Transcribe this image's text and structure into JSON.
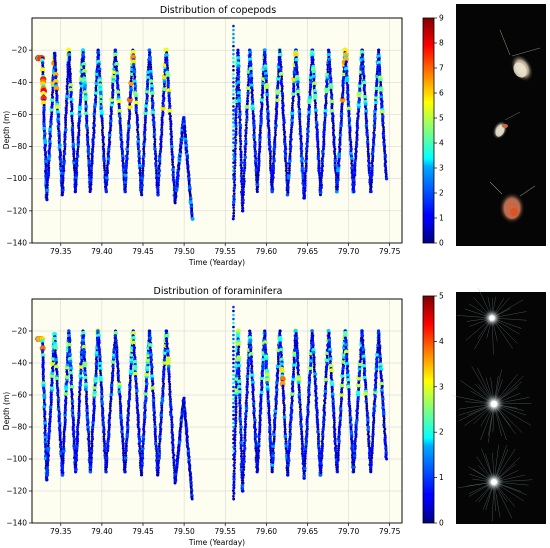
{
  "colors": {
    "plot_background": "#fefef0",
    "colormap": "jet",
    "thumbnail_background": "#050505"
  },
  "chart_data": [
    {
      "type": "scatter",
      "title": "Distribution of copepods",
      "xlabel": "Time (Yearday)",
      "ylabel": "Depth (m)",
      "xlim": [
        79.315,
        79.765
      ],
      "ylim": [
        -140,
        0
      ],
      "xticks": [
        79.35,
        79.4,
        79.45,
        79.5,
        79.55,
        79.6,
        79.65,
        79.7,
        79.75
      ],
      "xtick_labels": [
        "79.35",
        "79.40",
        "79.45",
        "79.50",
        "79.55",
        "79.60",
        "79.65",
        "79.70",
        "79.75"
      ],
      "yticks": [
        -140,
        -120,
        -100,
        -80,
        -60,
        -40,
        -20
      ],
      "ytick_labels": [
        "−140",
        "−120",
        "−100",
        "−80",
        "−60",
        "−40",
        "−20"
      ],
      "grid": true,
      "colorbar": {
        "colormap": "jet",
        "range": [
          0,
          9
        ],
        "ticks": [
          0,
          1,
          2,
          3,
          4,
          5,
          6,
          7,
          8,
          9
        ],
        "tick_labels": [
          "0",
          "1",
          "2",
          "3",
          "4",
          "5",
          "6",
          "7",
          "8",
          "9"
        ]
      },
      "profiles": [
        {
          "x0": 79.322,
          "x1": 79.333,
          "top": -25,
          "bottom": -113,
          "vmax": 8
        },
        {
          "x0": 79.333,
          "x1": 79.352,
          "top": -22,
          "bottom": -110,
          "vmax": 7
        },
        {
          "x0": 79.352,
          "x1": 79.368,
          "top": -20,
          "bottom": -108,
          "vmax": 6
        },
        {
          "x0": 79.368,
          "x1": 79.386,
          "top": -20,
          "bottom": -108,
          "vmax": 5
        },
        {
          "x0": 79.386,
          "x1": 79.405,
          "top": -20,
          "bottom": -108,
          "vmax": 5
        },
        {
          "x0": 79.405,
          "x1": 79.428,
          "top": -20,
          "bottom": -108,
          "vmax": 6
        },
        {
          "x0": 79.428,
          "x1": 79.448,
          "top": -20,
          "bottom": -110,
          "vmax": 7
        },
        {
          "x0": 79.448,
          "x1": 79.468,
          "top": -20,
          "bottom": -110,
          "vmax": 5
        },
        {
          "x0": 79.468,
          "x1": 79.489,
          "top": -20,
          "bottom": -115,
          "vmax": 6
        },
        {
          "x0": 79.489,
          "x1": 79.51,
          "top": -62,
          "bottom": -125,
          "vmax": 7
        },
        {
          "x0": 79.56,
          "x1": 79.571,
          "top": -20,
          "bottom": -120,
          "vmax": 5
        },
        {
          "x0": 79.571,
          "x1": 79.589,
          "top": -20,
          "bottom": -108,
          "vmax": 5
        },
        {
          "x0": 79.589,
          "x1": 79.607,
          "top": -20,
          "bottom": -108,
          "vmax": 5
        },
        {
          "x0": 79.607,
          "x1": 79.626,
          "top": -20,
          "bottom": -110,
          "vmax": 5
        },
        {
          "x0": 79.626,
          "x1": 79.646,
          "top": -20,
          "bottom": -112,
          "vmax": 6
        },
        {
          "x0": 79.646,
          "x1": 79.666,
          "top": -20,
          "bottom": -110,
          "vmax": 5
        },
        {
          "x0": 79.666,
          "x1": 79.686,
          "top": -20,
          "bottom": -108,
          "vmax": 5
        },
        {
          "x0": 79.686,
          "x1": 79.706,
          "top": -20,
          "bottom": -108,
          "vmax": 7
        },
        {
          "x0": 79.706,
          "x1": 79.727,
          "top": -20,
          "bottom": -108,
          "vmax": 5
        },
        {
          "x0": 79.727,
          "x1": 79.746,
          "top": -20,
          "bottom": -100,
          "vmax": 5
        }
      ],
      "verticals": [
        {
          "x": 79.56,
          "top": -5,
          "bottom": -100
        }
      ]
    },
    {
      "type": "scatter",
      "title": "Distribution of foraminifera",
      "xlabel": "Time (Yearday)",
      "ylabel": "Depth (m)",
      "xlim": [
        79.315,
        79.765
      ],
      "ylim": [
        -140,
        0
      ],
      "xticks": [
        79.35,
        79.4,
        79.45,
        79.5,
        79.55,
        79.6,
        79.65,
        79.7,
        79.75
      ],
      "xtick_labels": [
        "79.35",
        "79.40",
        "79.45",
        "79.50",
        "79.55",
        "79.60",
        "79.65",
        "79.70",
        "79.75"
      ],
      "yticks": [
        -140,
        -120,
        -100,
        -80,
        -60,
        -40,
        -20
      ],
      "ytick_labels": [
        "−140",
        "−120",
        "−100",
        "−80",
        "−60",
        "−40",
        "−20"
      ],
      "grid": true,
      "colorbar": {
        "colormap": "jet",
        "range": [
          0,
          5
        ],
        "ticks": [
          0,
          1,
          2,
          3,
          4,
          5
        ],
        "tick_labels": [
          "0",
          "1",
          "2",
          "3",
          "4",
          "5"
        ]
      },
      "profiles": [
        {
          "x0": 79.322,
          "x1": 79.333,
          "top": -25,
          "bottom": -113,
          "vmax": 4
        },
        {
          "x0": 79.333,
          "x1": 79.352,
          "top": -22,
          "bottom": -110,
          "vmax": 3
        },
        {
          "x0": 79.352,
          "x1": 79.368,
          "top": -20,
          "bottom": -108,
          "vmax": 3
        },
        {
          "x0": 79.368,
          "x1": 79.386,
          "top": -20,
          "bottom": -108,
          "vmax": 3
        },
        {
          "x0": 79.386,
          "x1": 79.405,
          "top": -20,
          "bottom": -108,
          "vmax": 3
        },
        {
          "x0": 79.405,
          "x1": 79.428,
          "top": -20,
          "bottom": -108,
          "vmax": 3
        },
        {
          "x0": 79.428,
          "x1": 79.448,
          "top": -20,
          "bottom": -110,
          "vmax": 3
        },
        {
          "x0": 79.448,
          "x1": 79.468,
          "top": -20,
          "bottom": -110,
          "vmax": 3
        },
        {
          "x0": 79.468,
          "x1": 79.489,
          "top": -20,
          "bottom": -115,
          "vmax": 3
        },
        {
          "x0": 79.489,
          "x1": 79.51,
          "top": -62,
          "bottom": -125,
          "vmax": 3
        },
        {
          "x0": 79.56,
          "x1": 79.571,
          "top": -20,
          "bottom": -120,
          "vmax": 3
        },
        {
          "x0": 79.571,
          "x1": 79.589,
          "top": -20,
          "bottom": -108,
          "vmax": 3
        },
        {
          "x0": 79.589,
          "x1": 79.607,
          "top": -20,
          "bottom": -108,
          "vmax": 3
        },
        {
          "x0": 79.607,
          "x1": 79.626,
          "top": -20,
          "bottom": -110,
          "vmax": 4
        },
        {
          "x0": 79.626,
          "x1": 79.646,
          "top": -20,
          "bottom": -112,
          "vmax": 3
        },
        {
          "x0": 79.646,
          "x1": 79.666,
          "top": -20,
          "bottom": -110,
          "vmax": 3
        },
        {
          "x0": 79.666,
          "x1": 79.686,
          "top": -20,
          "bottom": -108,
          "vmax": 3
        },
        {
          "x0": 79.686,
          "x1": 79.706,
          "top": -20,
          "bottom": -108,
          "vmax": 3
        },
        {
          "x0": 79.706,
          "x1": 79.727,
          "top": -20,
          "bottom": -108,
          "vmax": 3
        },
        {
          "x0": 79.727,
          "x1": 79.746,
          "top": -20,
          "bottom": -100,
          "vmax": 3
        }
      ],
      "verticals": [
        {
          "x": 79.56,
          "top": -5,
          "bottom": -100
        }
      ]
    }
  ],
  "thumbnails": [
    {
      "name": "copepod-specimens-image",
      "subject": "copepods"
    },
    {
      "name": "foraminifera-specimens-image",
      "subject": "foraminifera"
    }
  ]
}
